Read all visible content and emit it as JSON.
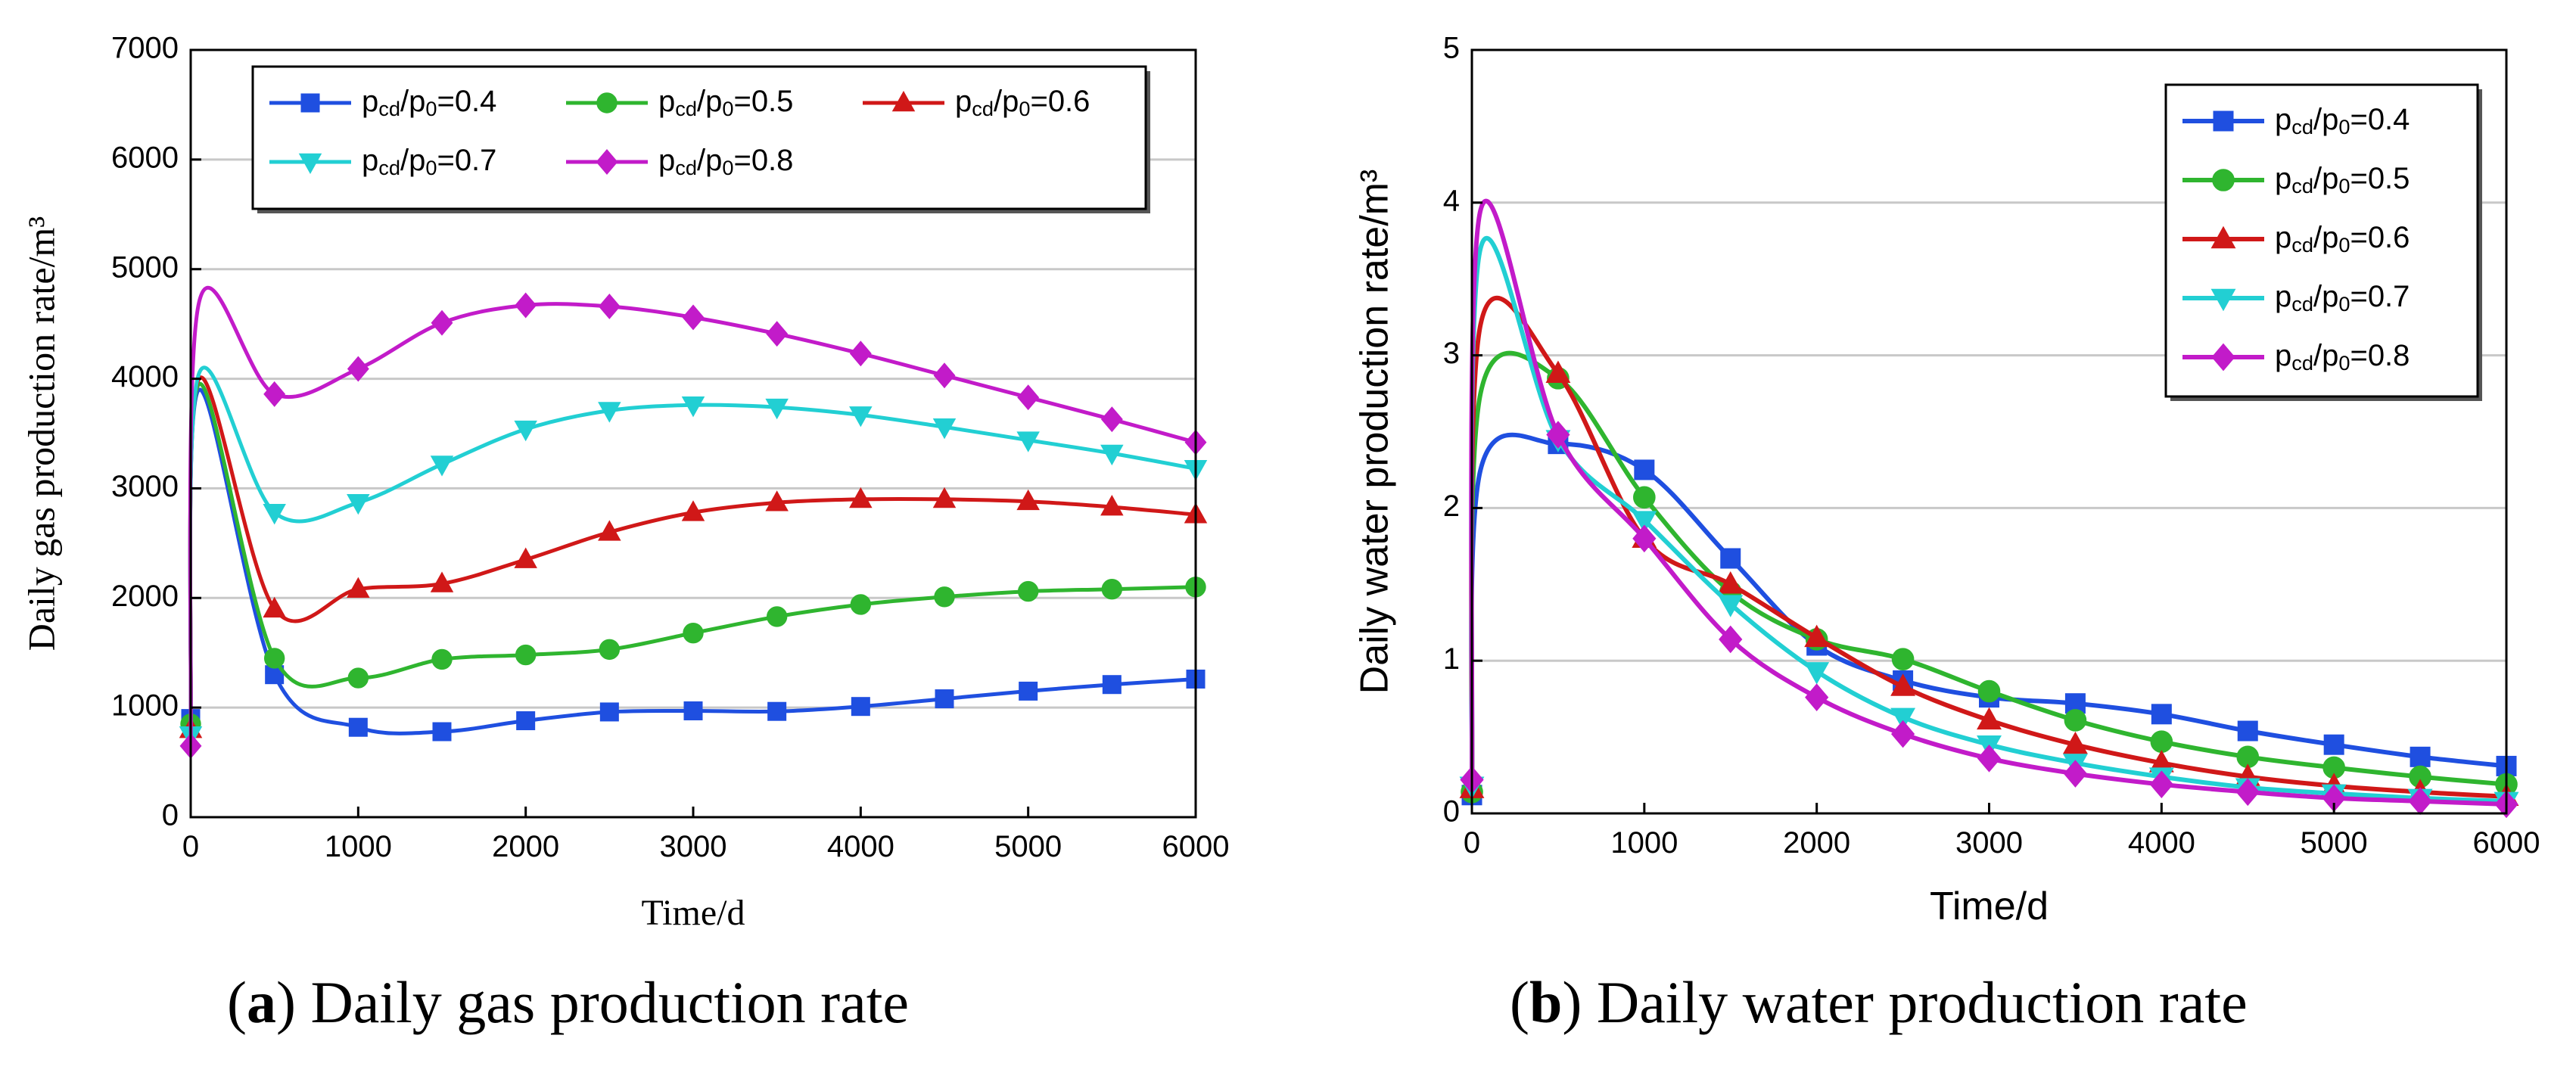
{
  "charts": [
    {
      "panel": "a",
      "caption_letter": "a",
      "caption_text": "Daily gas production rate",
      "chart_ref": 0
    },
    {
      "panel": "b",
      "caption_letter": "b",
      "caption_text": "Daily water production rate",
      "chart_ref": 1
    }
  ],
  "chart_data": [
    {
      "type": "line",
      "title": "",
      "xlabel": "Time/d",
      "ylabel": "Daily gas production rate/m³",
      "xlim": [
        0,
        6000
      ],
      "ylim": [
        0,
        7000
      ],
      "xticks": [
        0,
        1000,
        2000,
        3000,
        4000,
        5000,
        6000
      ],
      "yticks": [
        0,
        1000,
        2000,
        3000,
        4000,
        5000,
        6000,
        7000
      ],
      "grid": "horizontal",
      "legend_placement": "top",
      "legend_columns": 3,
      "series": [
        {
          "name_main": "p",
          "sub1": "cd",
          "mid": "/p",
          "sub2": "0",
          "value_label": "=0.4",
          "color": "#1f4fe0",
          "marker": "square",
          "x": [
            0,
            50,
            500,
            1000,
            1500,
            2000,
            2500,
            3000,
            3500,
            4000,
            4500,
            5000,
            5500,
            6000
          ],
          "y": [
            900,
            3900,
            1300,
            820,
            780,
            880,
            960,
            970,
            965,
            1010,
            1080,
            1150,
            1210,
            1260
          ]
        },
        {
          "name_main": "p",
          "sub1": "cd",
          "mid": "/p",
          "sub2": "0",
          "value_label": "=0.5",
          "color": "#2fb52f",
          "marker": "circle",
          "x": [
            0,
            50,
            500,
            1000,
            1500,
            2000,
            2500,
            3000,
            3500,
            4000,
            4500,
            5000,
            5500,
            6000
          ],
          "y": [
            850,
            3950,
            1450,
            1270,
            1440,
            1480,
            1530,
            1680,
            1830,
            1940,
            2010,
            2060,
            2080,
            2100
          ]
        },
        {
          "name_main": "p",
          "sub1": "cd",
          "mid": "/p",
          "sub2": "0",
          "value_label": "=0.6",
          "color": "#d01818",
          "marker": "triangle-up",
          "x": [
            0,
            50,
            500,
            1000,
            1500,
            2000,
            2500,
            3000,
            3500,
            4000,
            4500,
            5000,
            5500,
            6000
          ],
          "y": [
            800,
            4000,
            1900,
            2080,
            2130,
            2350,
            2600,
            2780,
            2870,
            2900,
            2900,
            2880,
            2830,
            2760
          ]
        },
        {
          "name_main": "p",
          "sub1": "cd",
          "mid": "/p",
          "sub2": "0",
          "value_label": "=0.7",
          "color": "#22cfd3",
          "marker": "triangle-down",
          "x": [
            0,
            50,
            500,
            1000,
            1500,
            2000,
            2500,
            3000,
            3500,
            4000,
            4500,
            5000,
            5500,
            6000
          ],
          "y": [
            750,
            4050,
            2780,
            2870,
            3220,
            3540,
            3710,
            3760,
            3740,
            3670,
            3560,
            3440,
            3320,
            3180
          ]
        },
        {
          "name_main": "p",
          "sub1": "cd",
          "mid": "/p",
          "sub2": "0",
          "value_label": "=0.8",
          "color": "#c21bc9",
          "marker": "diamond",
          "x": [
            0,
            50,
            500,
            1000,
            1500,
            2000,
            2500,
            3000,
            3500,
            4000,
            4500,
            5000,
            5500,
            6000
          ],
          "y": [
            650,
            4700,
            3860,
            4090,
            4510,
            4670,
            4660,
            4560,
            4410,
            4230,
            4030,
            3830,
            3630,
            3420
          ]
        }
      ]
    },
    {
      "type": "line",
      "title": "",
      "xlabel": "Time/d",
      "ylabel": "Daily water production rate/m³",
      "xlim": [
        0,
        6000
      ],
      "ylim": [
        0,
        5
      ],
      "xticks": [
        0,
        1000,
        2000,
        3000,
        4000,
        5000,
        6000
      ],
      "yticks": [
        0,
        1,
        2,
        3,
        4,
        5
      ],
      "grid": "horizontal",
      "legend_placement": "top-right",
      "legend_columns": 1,
      "series": [
        {
          "name_main": "p",
          "sub1": "cd",
          "mid": "/p",
          "sub2": "0",
          "value_label": "=0.4",
          "color": "#1f4fe0",
          "marker": "square",
          "x": [
            0,
            50,
            500,
            1000,
            1500,
            2000,
            2500,
            3000,
            3500,
            4000,
            4500,
            5000,
            5500,
            6000
          ],
          "y": [
            0.12,
            2.25,
            2.42,
            2.25,
            1.67,
            1.1,
            0.87,
            0.76,
            0.72,
            0.65,
            0.54,
            0.45,
            0.37,
            0.31
          ]
        },
        {
          "name_main": "p",
          "sub1": "cd",
          "mid": "/p",
          "sub2": "0",
          "value_label": "=0.5",
          "color": "#2fb52f",
          "marker": "circle",
          "x": [
            0,
            50,
            500,
            1000,
            1500,
            2000,
            2500,
            3000,
            3500,
            4000,
            4500,
            5000,
            5500,
            6000
          ],
          "y": [
            0.14,
            2.75,
            2.85,
            2.07,
            1.45,
            1.14,
            1.01,
            0.8,
            0.61,
            0.47,
            0.37,
            0.3,
            0.24,
            0.19
          ]
        },
        {
          "name_main": "p",
          "sub1": "cd",
          "mid": "/p",
          "sub2": "0",
          "value_label": "=0.6",
          "color": "#d01818",
          "marker": "triangle-up",
          "x": [
            0,
            50,
            500,
            1000,
            1500,
            2000,
            2500,
            3000,
            3500,
            4000,
            4500,
            5000,
            5500,
            6000
          ],
          "y": [
            0.16,
            3.2,
            2.88,
            1.8,
            1.5,
            1.15,
            0.83,
            0.61,
            0.45,
            0.33,
            0.24,
            0.18,
            0.14,
            0.11
          ]
        },
        {
          "name_main": "p",
          "sub1": "cd",
          "mid": "/p",
          "sub2": "0",
          "value_label": "=0.7",
          "color": "#22cfd3",
          "marker": "triangle-down",
          "x": [
            0,
            50,
            500,
            1000,
            1500,
            2000,
            2500,
            3000,
            3500,
            4000,
            4500,
            5000,
            5500,
            6000
          ],
          "y": [
            0.18,
            3.7,
            2.45,
            1.92,
            1.37,
            0.93,
            0.63,
            0.45,
            0.33,
            0.24,
            0.17,
            0.13,
            0.1,
            0.08
          ]
        },
        {
          "name_main": "p",
          "sub1": "cd",
          "mid": "/p",
          "sub2": "0",
          "value_label": "=0.8",
          "color": "#c21bc9",
          "marker": "diamond",
          "x": [
            0,
            50,
            500,
            1000,
            1500,
            2000,
            2500,
            3000,
            3500,
            4000,
            4500,
            5000,
            5500,
            6000
          ],
          "y": [
            0.22,
            3.95,
            2.48,
            1.8,
            1.14,
            0.76,
            0.52,
            0.36,
            0.26,
            0.19,
            0.14,
            0.1,
            0.08,
            0.06
          ]
        }
      ]
    }
  ]
}
